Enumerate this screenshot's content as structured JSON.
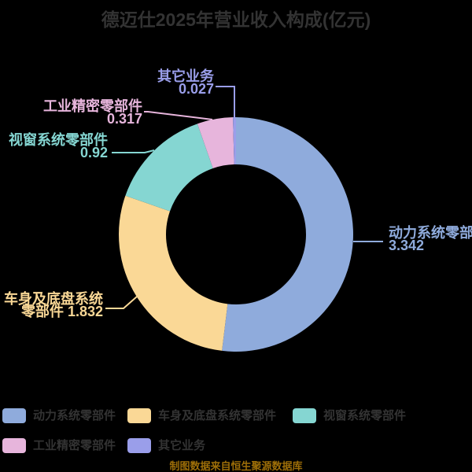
{
  "title": "德迈仕2025年营业收入构成(亿元)",
  "watermark": "制图数据来自恒生聚源数据库",
  "background_color": "#000000",
  "title_color": "#333333",
  "legend_text_color": "#333333",
  "watermark_color": "#9d6e08",
  "chart_data": {
    "type": "pie",
    "title": "德迈仕2025年营业收入构成(亿元)",
    "unit": "亿元",
    "donut": true,
    "start_angle_deg": 0,
    "direction": "clockwise",
    "legend_position": "bottom",
    "slices": [
      {
        "name": "动力系统零部件",
        "value": 3.342,
        "color": "#8fabdc",
        "callout_lines": [
          "动力系统零部件",
          "3.342"
        ]
      },
      {
        "name": "车身及底盘系统零部件",
        "value": 1.832,
        "color": "#fad896",
        "callout_lines": [
          "车身及底盘系统",
          "零部件 1.832"
        ]
      },
      {
        "name": "视窗系统零部件",
        "value": 0.92,
        "color": "#85d6d2",
        "callout_lines": [
          "视窗系统零部件",
          "0.92"
        ]
      },
      {
        "name": "工业精密零部件",
        "value": 0.317,
        "color": "#e7b5dc",
        "callout_lines": [
          "工业精密零部件",
          "0.317"
        ]
      },
      {
        "name": "其它业务",
        "value": 0.027,
        "color": "#9a9eea",
        "callout_lines": [
          "其它业务",
          "0.027"
        ]
      }
    ],
    "legend": [
      "动力系统零部件",
      "车身及底盘系统零部件",
      "视窗系统零部件",
      "工业精密零部件",
      "其它业务"
    ]
  }
}
